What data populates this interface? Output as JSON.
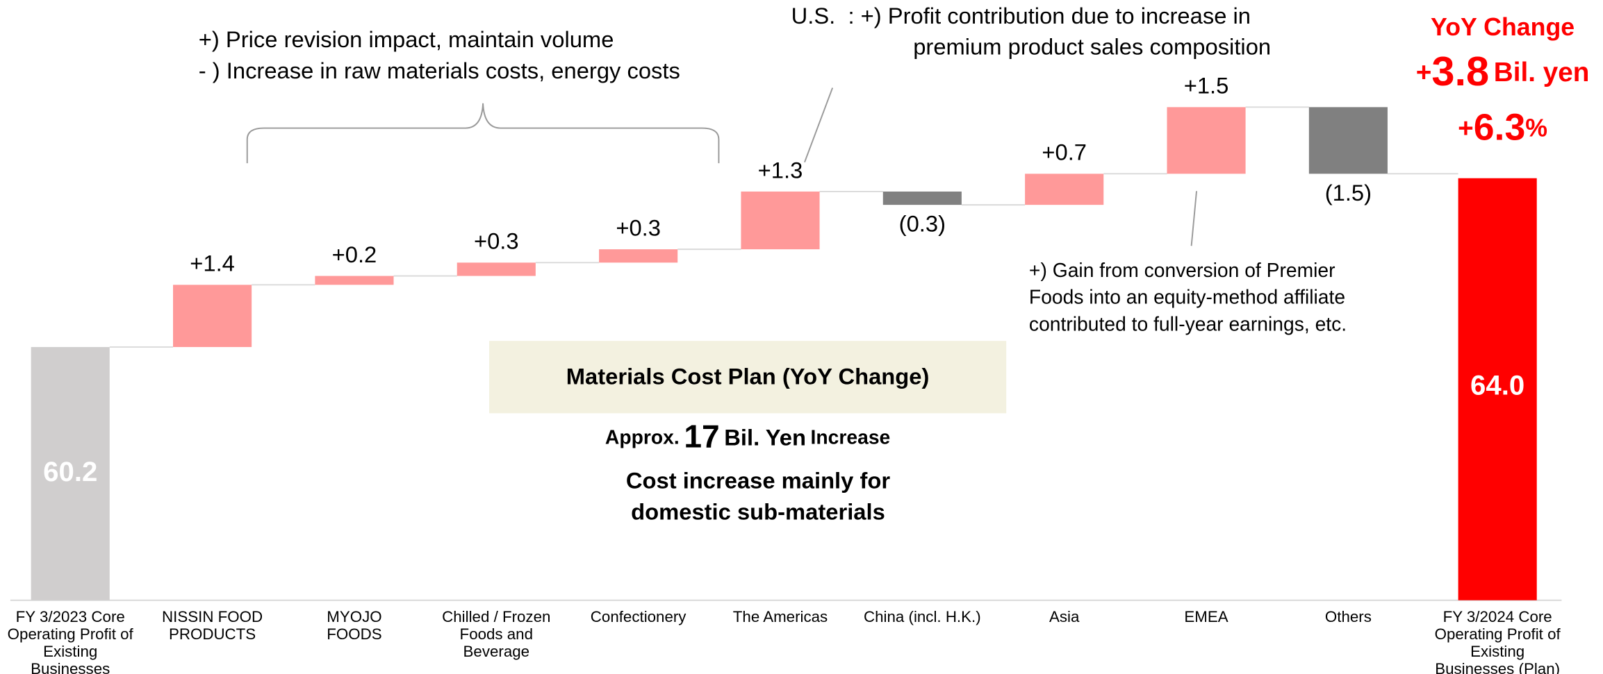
{
  "chart_data": {
    "type": "waterfall",
    "categories": [
      "FY 3/2023 Core\nOperating Profit of\nExisting\nBusinesses",
      "NISSIN FOOD\nPRODUCTS",
      "MYOJO\nFOODS",
      "Chilled / Frozen\nFoods and\nBeverage",
      "Confectionery",
      "The Americas",
      "China (incl. H.K.)",
      "Asia",
      "EMEA",
      "Others",
      "FY 3/2024 Core\nOperating Profit of\nExisting\nBusinesses (Plan)"
    ],
    "values": [
      60.2,
      1.4,
      0.2,
      0.3,
      0.3,
      1.3,
      -0.3,
      0.7,
      1.5,
      -1.5,
      64.0
    ],
    "value_labels": [
      "60.2",
      "+1.4",
      "+0.2",
      "+0.3",
      "+0.3",
      "+1.3",
      "(0.3)",
      "+0.7",
      "+1.5",
      "(1.5)",
      "64.0"
    ],
    "total": [
      true,
      false,
      false,
      false,
      false,
      false,
      false,
      false,
      false,
      false,
      true
    ],
    "colors": [
      "#d0cece",
      "#ff9999",
      "#ff9999",
      "#ff9999",
      "#ff9999",
      "#ff9999",
      "#808080",
      "#ff9999",
      "#ff9999",
      "#808080",
      "#ff0000"
    ],
    "ylim": [
      54.5,
      66
    ],
    "annotations": {
      "domestic": [
        "+) Price revision impact, maintain volume",
        "- ) Increase in raw materials costs, energy costs"
      ],
      "us": [
        "U.S.  : +) Profit contribution due to increase in",
        "premium product sales composition"
      ],
      "emea": [
        "+) Gain from conversion of Premier",
        "Foods into an equity-method affiliate",
        "contributed to full-year earnings, etc."
      ],
      "box_title": "Materials Cost Plan (YoY Change)",
      "approx": [
        "Approx.",
        "17",
        "Bil. Yen",
        "Increase"
      ],
      "cost": [
        "Cost increase mainly for",
        "domestic sub-materials"
      ]
    },
    "yoy": {
      "title": "YoY Change",
      "amount": [
        "+",
        "3.8",
        "Bil. yen"
      ],
      "percent": [
        "+",
        "6.3",
        "%"
      ]
    }
  }
}
